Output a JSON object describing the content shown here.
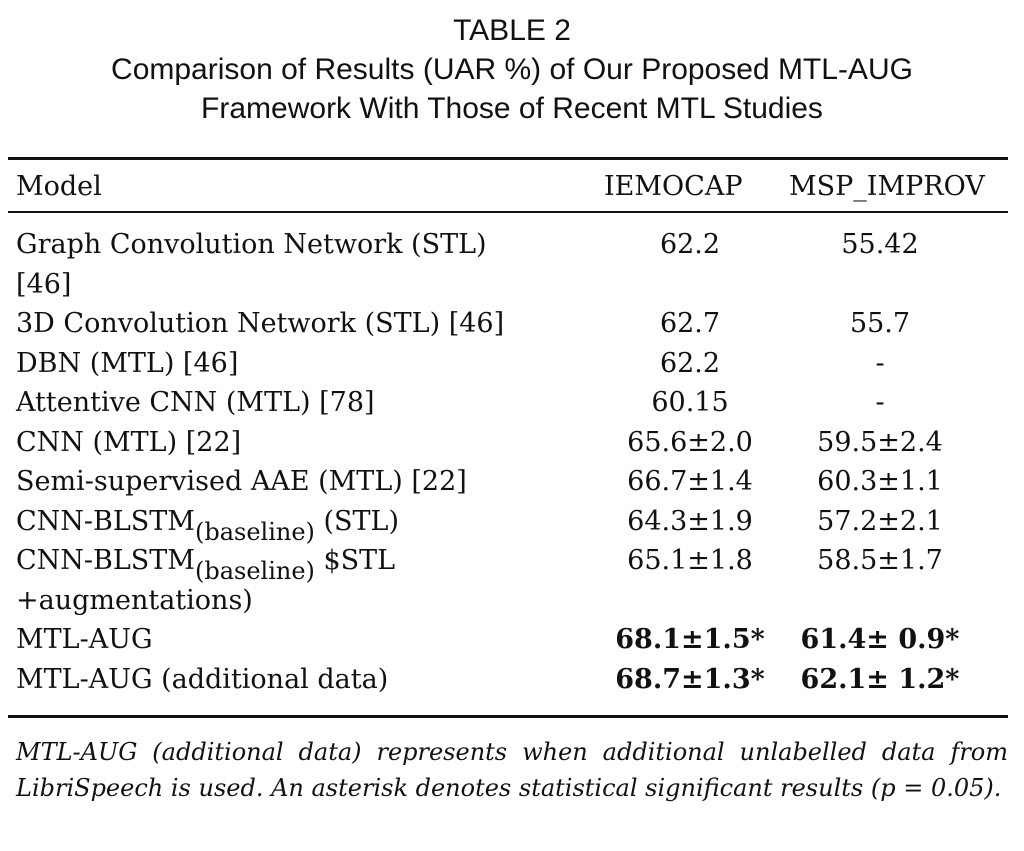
{
  "title": {
    "label": "TABLE 2",
    "line1": "Comparison of Results (UAR %) of Our Proposed MTL-AUG",
    "line2": "Framework With Those of Recent MTL Studies"
  },
  "headers": [
    "Model",
    "IEMOCAP",
    "MSP_IMPROV"
  ],
  "rows": [
    {
      "model": "Graph Convolution Network (STL)",
      "model_cont": "[46]",
      "iemocap": "62.2",
      "msp": "55.42"
    },
    {
      "model": "3D Convolution Network (STL) [46]",
      "iemocap": "62.7",
      "msp": "55.7"
    },
    {
      "model": "DBN (MTL) [46]",
      "iemocap": "62.2",
      "msp": "-"
    },
    {
      "model": "Attentive CNN (MTL) [78]",
      "iemocap": "60.15",
      "msp": "-"
    },
    {
      "model": "CNN (MTL) [22]",
      "iemocap": "65.6±2.0",
      "msp": "59.5±2.4"
    },
    {
      "model": "Semi-supervised AAE (MTL) [22]",
      "iemocap": "66.7±1.4",
      "msp": "60.3±1.1"
    },
    {
      "model": "CNN-BLSTM",
      "sub": "(baseline)",
      "suffix": "(STL)",
      "iemocap": "64.3±1.9",
      "msp": "57.2±2.1"
    },
    {
      "model": "CNN-BLSTM",
      "sub": "(baseline)",
      "suffix": "$STL",
      "model_cont": "+augmentations)",
      "iemocap": "65.1±1.8",
      "msp": "58.5±1.7"
    },
    {
      "model": "MTL-AUG",
      "iemocap": "68.1±1.5*",
      "msp": "61.4± 0.9*",
      "bold": true
    },
    {
      "model": "MTL-AUG (additional data)",
      "iemocap": "68.7±1.3*",
      "msp": "62.1± 1.2*",
      "bold": true
    }
  ],
  "footnote": "MTL-AUG (additional data) represents when additional unlabelled data from LibriSpeech is used. An asterisk denotes statistical significant results (p = 0.05)."
}
